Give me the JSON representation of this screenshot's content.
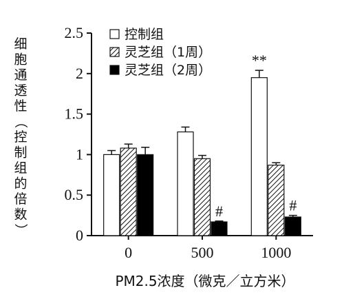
{
  "chart_data": {
    "type": "bar",
    "categories": [
      "0",
      "500",
      "1000"
    ],
    "series": [
      {
        "name": "控制组",
        "style": "white",
        "values": [
          1.0,
          1.28,
          1.95
        ],
        "errors": [
          0.05,
          0.06,
          0.09
        ]
      },
      {
        "name": "灵芝组（1周）",
        "style": "hatched",
        "values": [
          1.08,
          0.95,
          0.87
        ],
        "errors": [
          0.05,
          0.04,
          0.03
        ]
      },
      {
        "name": "灵芝组（2周）",
        "style": "black",
        "values": [
          1.0,
          0.17,
          0.23
        ],
        "errors": [
          0.09,
          0.01,
          0.02
        ]
      }
    ],
    "ylim": [
      0,
      2.5
    ],
    "yticks": [
      "0",
      "0.5",
      "1",
      "1.5",
      "2",
      "2.5"
    ],
    "ylabel_chars": [
      "细",
      "胞",
      "通",
      "透",
      "性",
      "（",
      "控",
      "制",
      "组",
      "的",
      "倍",
      "数",
      "）"
    ],
    "xlabel": "PM2.5浓度（微克／立方米）",
    "annotations": [
      {
        "category": 2,
        "series": 0,
        "text": "**"
      },
      {
        "category": 1,
        "series": 2,
        "text": "#"
      },
      {
        "category": 2,
        "series": 2,
        "text": "#"
      }
    ],
    "legend_position": "top-left",
    "grid": false
  }
}
